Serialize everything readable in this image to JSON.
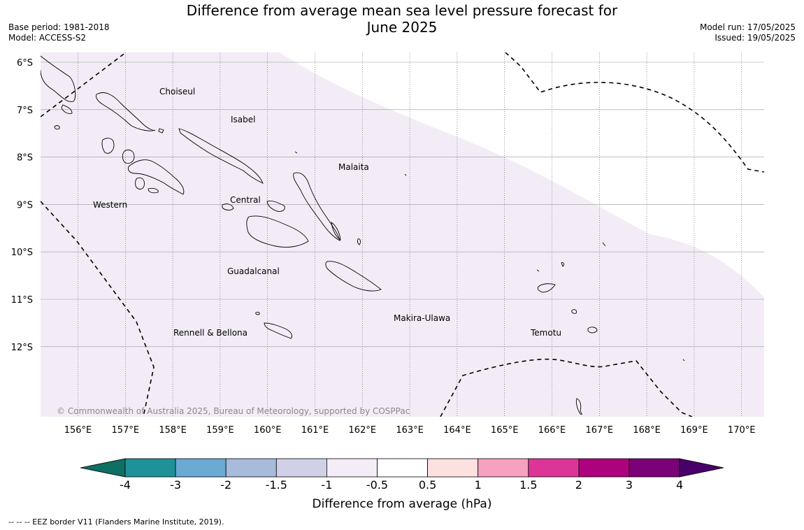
{
  "header": {
    "title_line1": "Difference from average mean sea level pressure forecast for",
    "title_line2": "June 2025",
    "base_period": "Base period: 1981-2018",
    "model": "Model: ACCESS-S2",
    "model_run": "Model run: 17/05/2025",
    "issued": "Issued: 19/05/2025"
  },
  "map": {
    "lon_labels": [
      "156°E",
      "157°E",
      "158°E",
      "159°E",
      "160°E",
      "161°E",
      "162°E",
      "163°E",
      "164°E",
      "165°E",
      "166°E",
      "167°E",
      "168°E",
      "169°E",
      "170°E"
    ],
    "lat_labels": [
      "6°S",
      "7°S",
      "8°S",
      "9°S",
      "10°S",
      "11°S",
      "12°S"
    ],
    "regions": [
      "Choiseul",
      "Isabel",
      "Malaita",
      "Western",
      "Central",
      "Guadalcanal",
      "Makira-Ulawa",
      "Rennell & Bellona",
      "Temotu"
    ],
    "copyright": "© Commonwealth of Australia 2025, Bureau of Meteorology, supported by COSPPac",
    "shading_color": "#f3ecf6"
  },
  "colorbar": {
    "tick_labels": [
      "-4",
      "-3",
      "-2",
      "-1.5",
      "-1",
      "-0.5",
      "0.5",
      "1",
      "1.5",
      "2",
      "3",
      "4"
    ],
    "colors": [
      "#0e6f63",
      "#1f9199",
      "#6aaad4",
      "#a7bcdb",
      "#d0d1e6",
      "#f4ecf7",
      "#ffffff",
      "#fde0e0",
      "#f7a1c0",
      "#dd3497",
      "#ae017e",
      "#7a0177",
      "#49006a"
    ],
    "label": "Difference from average (hPa)"
  },
  "footer": {
    "eez_note": "-- -- -- EEZ border V11 (Flanders Marine Institute, 2019)."
  }
}
